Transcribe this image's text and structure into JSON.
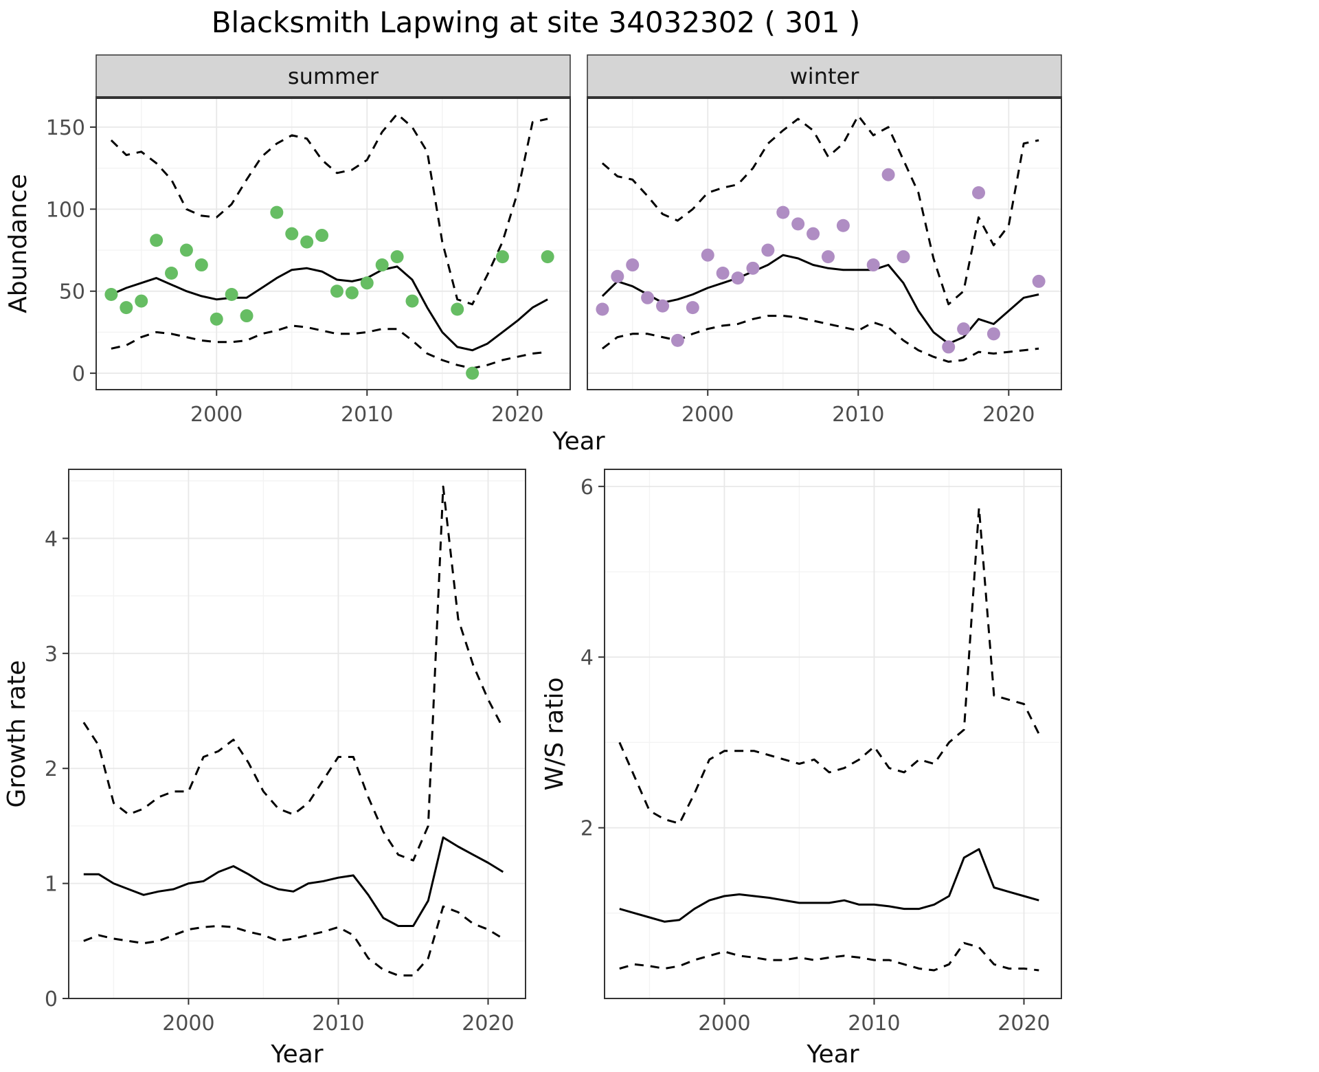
{
  "title": "Blacksmith Lapwing at site 34032302 ( 301 )",
  "colors": {
    "fit_line": "#000000",
    "ci_line": "#000000",
    "strip_background": "#d5d5d5",
    "summer_points": "#66bd63",
    "winter_points": "#af8dc3",
    "tick_label": "#4d4d4d",
    "panel_border": "#333333"
  },
  "chart_data": [
    {
      "type": "line",
      "name": "abundance",
      "title": "Blacksmith Lapwing at site 34032302 ( 301 )",
      "xlabel": "Year",
      "ylabel": "Abundance",
      "xlim": [
        1992,
        2023.5
      ],
      "ylim": [
        -10,
        168
      ],
      "xticks": [
        2000,
        2010,
        2020
      ],
      "yticks": [
        0,
        50,
        100,
        150
      ],
      "xminor": [
        1995,
        2005,
        2015
      ],
      "yminor": [
        25,
        75,
        125
      ],
      "grid": true,
      "legend": "none",
      "x": [
        1993,
        1994,
        1995,
        1996,
        1997,
        1998,
        1999,
        2000,
        2001,
        2002,
        2003,
        2004,
        2005,
        2006,
        2007,
        2008,
        2009,
        2010,
        2011,
        2012,
        2013,
        2014,
        2015,
        2016,
        2017,
        2018,
        2019,
        2020,
        2021,
        2022
      ],
      "facets": [
        {
          "label": "summer",
          "point_color": "#66bd63",
          "points": {
            "x": [
              1993,
              1994,
              1995,
              1996,
              1997,
              1998,
              1999,
              2000,
              2001,
              2002,
              2004,
              2005,
              2006,
              2007,
              2008,
              2009,
              2010,
              2011,
              2012,
              2013,
              2016,
              2017,
              2019,
              2022
            ],
            "y": [
              48,
              40,
              44,
              81,
              61,
              75,
              66,
              33,
              48,
              35,
              98,
              85,
              80,
              84,
              50,
              49,
              55,
              66,
              71,
              44,
              39,
              0,
              71,
              71
            ]
          },
          "fit": [
            48,
            52,
            55,
            58,
            54,
            50,
            47,
            45,
            46,
            46,
            52,
            58,
            63,
            64,
            62,
            57,
            56,
            58,
            63,
            65,
            57,
            40,
            25,
            16,
            14,
            18,
            25,
            32,
            40,
            45
          ],
          "upper": [
            142,
            133,
            135,
            128,
            118,
            100,
            96,
            95,
            103,
            118,
            132,
            140,
            145,
            143,
            130,
            122,
            124,
            130,
            147,
            158,
            150,
            135,
            80,
            45,
            42,
            60,
            80,
            110,
            153,
            155
          ],
          "lower": [
            15,
            17,
            22,
            25,
            24,
            22,
            20,
            19,
            19,
            20,
            24,
            26,
            29,
            28,
            26,
            24,
            24,
            25,
            27,
            27,
            20,
            12,
            8,
            5,
            3,
            5,
            8,
            10,
            12,
            13
          ]
        },
        {
          "label": "winter",
          "point_color": "#af8dc3",
          "points": {
            "x": [
              1993,
              1994,
              1995,
              1996,
              1997,
              1998,
              1999,
              2000,
              2001,
              2002,
              2003,
              2004,
              2005,
              2006,
              2007,
              2008,
              2009,
              2011,
              2012,
              2013,
              2016,
              2017,
              2018,
              2019,
              2022
            ],
            "y": [
              39,
              59,
              66,
              46,
              41,
              20,
              40,
              72,
              61,
              58,
              64,
              75,
              98,
              91,
              85,
              71,
              90,
              66,
              121,
              71,
              16,
              27,
              110,
              24,
              56
            ]
          },
          "fit": [
            47,
            56,
            53,
            48,
            43,
            45,
            48,
            52,
            55,
            58,
            62,
            66,
            72,
            70,
            66,
            64,
            63,
            63,
            63,
            66,
            55,
            38,
            25,
            18,
            22,
            33,
            30,
            38,
            46,
            48
          ],
          "upper": [
            128,
            120,
            118,
            108,
            97,
            93,
            100,
            110,
            113,
            115,
            125,
            140,
            148,
            155,
            148,
            132,
            140,
            157,
            145,
            150,
            130,
            110,
            70,
            42,
            50,
            95,
            78,
            90,
            140,
            142
          ],
          "lower": [
            15,
            22,
            24,
            24,
            22,
            20,
            24,
            27,
            29,
            30,
            33,
            35,
            35,
            34,
            32,
            30,
            28,
            26,
            31,
            28,
            20,
            14,
            10,
            7,
            8,
            13,
            12,
            13,
            14,
            15
          ]
        }
      ]
    },
    {
      "type": "line",
      "name": "growth_rate",
      "xlabel": "Year",
      "ylabel": "Growth rate",
      "xlim": [
        1992,
        2022.5
      ],
      "ylim": [
        0,
        4.6
      ],
      "xticks": [
        2000,
        2010,
        2020
      ],
      "yticks": [
        0,
        1,
        2,
        3,
        4
      ],
      "xminor": [
        1995,
        2005,
        2015
      ],
      "yminor": [
        0.5,
        1.5,
        2.5,
        3.5,
        4.5
      ],
      "grid": true,
      "legend": "none",
      "x": [
        1993,
        1994,
        1995,
        1996,
        1997,
        1998,
        1999,
        2000,
        2001,
        2002,
        2003,
        2004,
        2005,
        2006,
        2007,
        2008,
        2009,
        2010,
        2011,
        2012,
        2013,
        2014,
        2015,
        2016,
        2017,
        2018,
        2019,
        2020,
        2021
      ],
      "fit": [
        1.08,
        1.08,
        1.0,
        0.95,
        0.9,
        0.93,
        0.95,
        1.0,
        1.02,
        1.1,
        1.15,
        1.08,
        1.0,
        0.95,
        0.93,
        1.0,
        1.02,
        1.05,
        1.07,
        0.9,
        0.7,
        0.63,
        0.63,
        0.85,
        1.4,
        1.32,
        1.25,
        1.18,
        1.1
      ],
      "upper": [
        2.4,
        2.2,
        1.7,
        1.6,
        1.65,
        1.75,
        1.8,
        1.8,
        2.1,
        2.15,
        2.25,
        2.05,
        1.8,
        1.65,
        1.6,
        1.7,
        1.9,
        2.1,
        2.1,
        1.75,
        1.45,
        1.25,
        1.2,
        1.5,
        4.45,
        3.3,
        2.9,
        2.6,
        2.35
      ],
      "lower": [
        0.5,
        0.55,
        0.52,
        0.5,
        0.48,
        0.5,
        0.55,
        0.6,
        0.62,
        0.63,
        0.62,
        0.58,
        0.55,
        0.5,
        0.52,
        0.55,
        0.58,
        0.62,
        0.55,
        0.35,
        0.25,
        0.2,
        0.2,
        0.35,
        0.8,
        0.75,
        0.65,
        0.6,
        0.52
      ]
    },
    {
      "type": "line",
      "name": "ws_ratio",
      "xlabel": "Year",
      "ylabel": "W/S ratio",
      "xlim": [
        1992,
        2022.5
      ],
      "ylim": [
        0,
        6.2
      ],
      "xticks": [
        2000,
        2010,
        2020
      ],
      "yticks": [
        2,
        4,
        6
      ],
      "xminor": [
        1995,
        2005,
        2015
      ],
      "yminor": [
        1,
        3,
        5
      ],
      "grid": true,
      "legend": "none",
      "x": [
        1993,
        1994,
        1995,
        1996,
        1997,
        1998,
        1999,
        2000,
        2001,
        2002,
        2003,
        2004,
        2005,
        2006,
        2007,
        2008,
        2009,
        2010,
        2011,
        2012,
        2013,
        2014,
        2015,
        2016,
        2017,
        2018,
        2019,
        2020,
        2021
      ],
      "fit": [
        1.05,
        1.0,
        0.95,
        0.9,
        0.92,
        1.05,
        1.15,
        1.2,
        1.22,
        1.2,
        1.18,
        1.15,
        1.12,
        1.12,
        1.12,
        1.15,
        1.1,
        1.1,
        1.08,
        1.05,
        1.05,
        1.1,
        1.2,
        1.65,
        1.75,
        1.3,
        1.25,
        1.2,
        1.15
      ],
      "upper": [
        3.0,
        2.6,
        2.2,
        2.1,
        2.05,
        2.4,
        2.8,
        2.9,
        2.9,
        2.9,
        2.85,
        2.8,
        2.75,
        2.8,
        2.65,
        2.7,
        2.8,
        2.95,
        2.7,
        2.65,
        2.8,
        2.75,
        3.0,
        3.15,
        5.75,
        3.55,
        3.5,
        3.45,
        3.1
      ],
      "lower": [
        0.35,
        0.4,
        0.38,
        0.35,
        0.38,
        0.45,
        0.5,
        0.55,
        0.5,
        0.48,
        0.45,
        0.45,
        0.48,
        0.45,
        0.48,
        0.5,
        0.48,
        0.45,
        0.45,
        0.4,
        0.35,
        0.33,
        0.4,
        0.65,
        0.6,
        0.4,
        0.35,
        0.35,
        0.33
      ]
    }
  ]
}
